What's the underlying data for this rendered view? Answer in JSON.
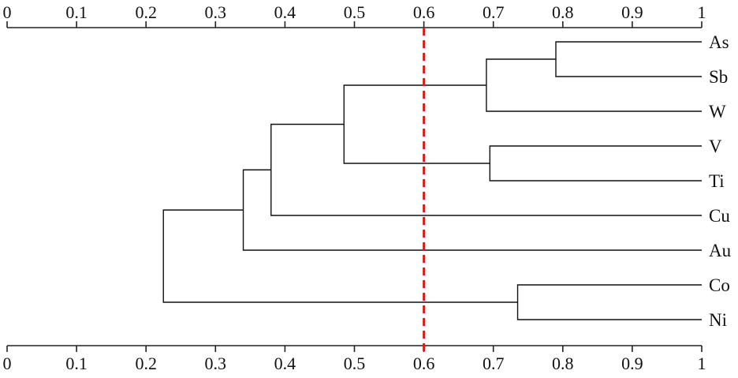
{
  "chart_data": {
    "type": "dendrogram",
    "xlim": [
      0,
      1
    ],
    "ticks": [
      "0",
      "0.1",
      "0.2",
      "0.3",
      "0.4",
      "0.5",
      "0.6",
      "0.7",
      "0.8",
      "0.9",
      "1"
    ],
    "tick_values": [
      0,
      0.1,
      0.2,
      0.3,
      0.4,
      0.5,
      0.6,
      0.7,
      0.8,
      0.9,
      1.0
    ],
    "axes": [
      "top",
      "bottom"
    ],
    "leaves": [
      "As",
      "Sb",
      "W",
      "V",
      "Ti",
      "Cu",
      "Au",
      "Co",
      "Ni"
    ],
    "merges": [
      {
        "id": "m1",
        "children": [
          "As",
          "Sb"
        ],
        "similarity": 0.79
      },
      {
        "id": "m2",
        "children": [
          "m1",
          "W"
        ],
        "similarity": 0.69
      },
      {
        "id": "m3",
        "children": [
          "V",
          "Ti"
        ],
        "similarity": 0.695
      },
      {
        "id": "m4",
        "children": [
          "m2",
          "m3"
        ],
        "similarity": 0.485
      },
      {
        "id": "m5",
        "children": [
          "m4",
          "Cu"
        ],
        "similarity": 0.38
      },
      {
        "id": "m6",
        "children": [
          "m5",
          "Au"
        ],
        "similarity": 0.34
      },
      {
        "id": "m7",
        "children": [
          "Co",
          "Ni"
        ],
        "similarity": 0.735
      },
      {
        "id": "m8",
        "children": [
          "m6",
          "m7"
        ],
        "similarity": 0.225
      }
    ],
    "reference_line": {
      "value": 0.6,
      "style": "dashed",
      "color": "#d81e1e"
    }
  }
}
